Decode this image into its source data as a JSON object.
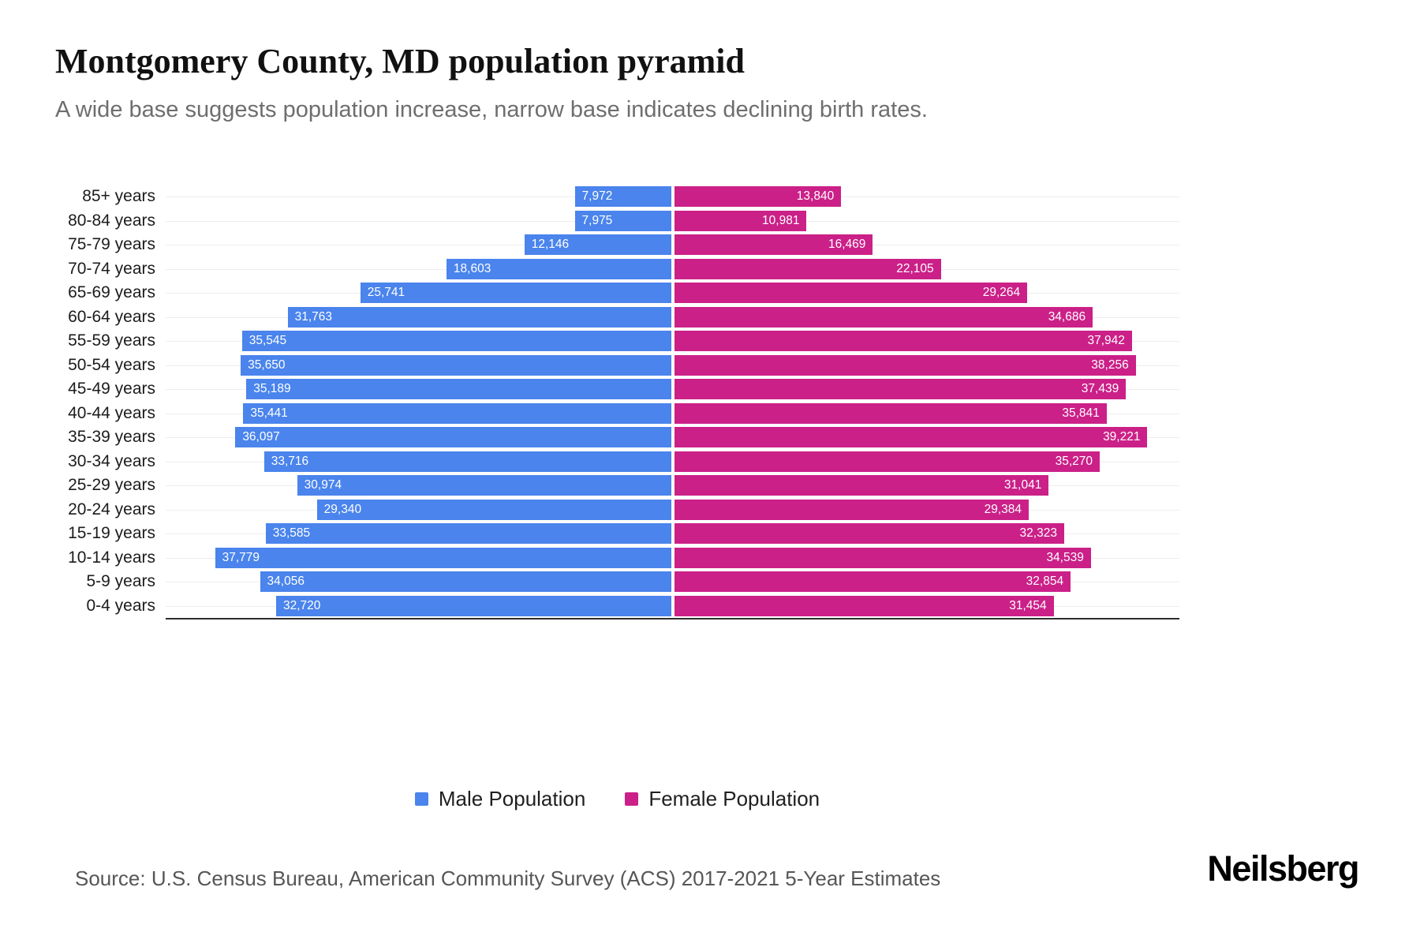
{
  "header": {
    "title": "Montgomery County, MD population pyramid",
    "subtitle": "A wide base suggests population increase, narrow base indicates declining birth rates."
  },
  "chart_data": {
    "type": "bar",
    "variant": "population-pyramid",
    "title": "Montgomery County, MD population pyramid",
    "categories": [
      "85+ years",
      "80-84 years",
      "75-79 years",
      "70-74 years",
      "65-69 years",
      "60-64 years",
      "55-59 years",
      "50-54 years",
      "45-49 years",
      "40-44 years",
      "35-39 years",
      "30-34 years",
      "25-29 years",
      "20-24 years",
      "15-19 years",
      "10-14 years",
      "5-9 years",
      "0-4 years"
    ],
    "series": [
      {
        "name": "Male Population",
        "side": "left",
        "color": "#4A84EC",
        "values": [
          7972,
          7975,
          12146,
          18603,
          25741,
          31763,
          35545,
          35650,
          35189,
          35441,
          36097,
          33716,
          30974,
          29340,
          33585,
          37779,
          34056,
          32720
        ]
      },
      {
        "name": "Female Population",
        "side": "right",
        "color": "#CB2088",
        "values": [
          13840,
          10981,
          16469,
          22105,
          29264,
          34686,
          37942,
          38256,
          37439,
          35841,
          39221,
          35270,
          31041,
          29384,
          32323,
          34539,
          32854,
          31454
        ]
      }
    ],
    "xlim": [
      0,
      42000
    ],
    "grid": true,
    "gridline_color": "#ededed",
    "axis_color": "#2e2e2e",
    "legend_position": "bottom"
  },
  "legend": {
    "male_label": "Male Population",
    "female_label": "Female Population"
  },
  "footer": {
    "source": "Source: U.S. Census Bureau, American Community Survey (ACS) 2017-2021 5-Year Estimates",
    "brand": "Neilsberg"
  }
}
